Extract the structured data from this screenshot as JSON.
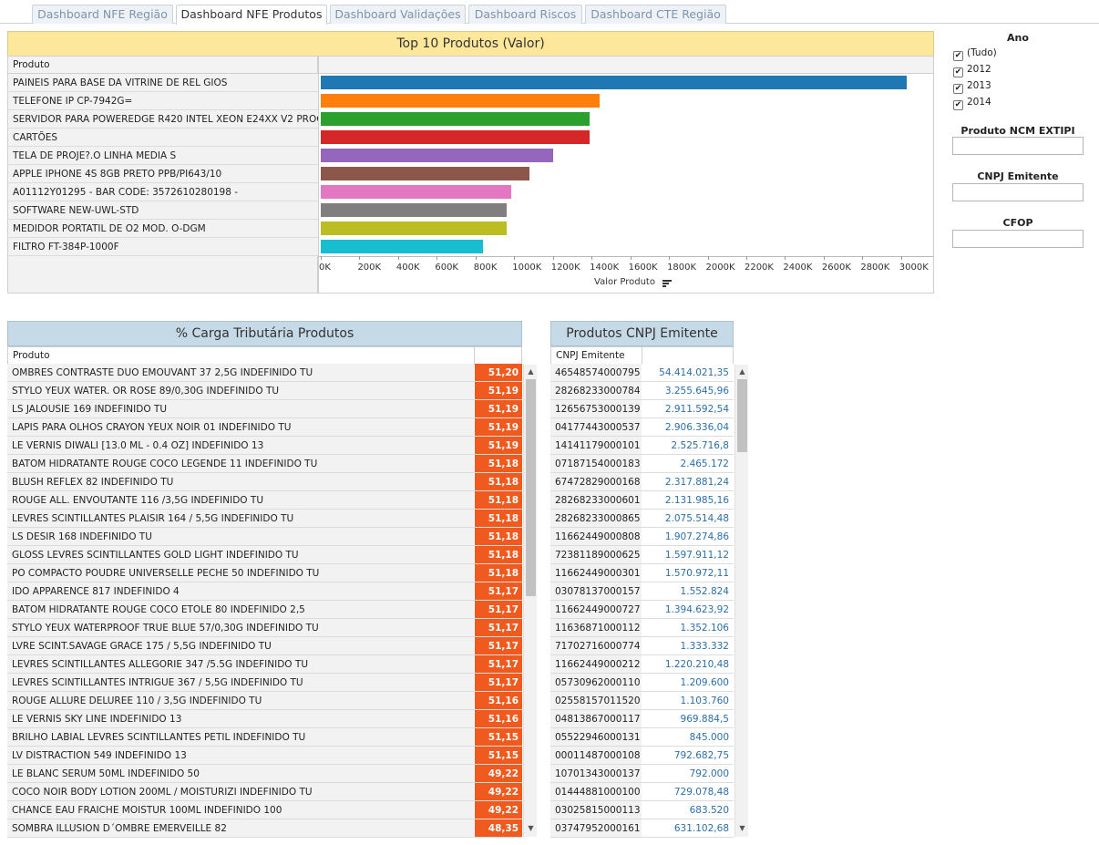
{
  "tabs": [
    {
      "label": "Dashboard NFE Região",
      "active": false
    },
    {
      "label": "Dashboard NFE Produtos",
      "active": true
    },
    {
      "label": "Dashboard Validações",
      "active": false
    },
    {
      "label": "Dashboard Riscos",
      "active": false
    },
    {
      "label": "Dashboard CTE Região",
      "active": false
    }
  ],
  "top_chart": {
    "title": "Top 10 Produtos (Valor)",
    "row_header": "Produto",
    "axis_title": "Valor Produto",
    "ticks": [
      "0K",
      "200K",
      "400K",
      "600K",
      "800K",
      "1000K",
      "1200K",
      "1400K",
      "1600K",
      "1800K",
      "2000K",
      "2200K",
      "2400K",
      "2600K",
      "2800K",
      "3000K"
    ],
    "axis_max": 3180,
    "items": [
      {
        "label": "PAINEIS PARA BASE DA VITRINE DE REL GIOS",
        "value": 3030,
        "color": "#1f77b4"
      },
      {
        "label": "TELEFONE IP CP-7942G=",
        "value": 1440,
        "color": "#ff7f0e"
      },
      {
        "label": "SERVIDOR PARA POWEREDGE R420 INTEL XEON E24XX V2 PROCE..",
        "value": 1390,
        "color": "#2ca02c"
      },
      {
        "label": "CARTÕES",
        "value": 1390,
        "color": "#d62728"
      },
      {
        "label": "TELA DE PROJE?.O LINHA MEDIA S",
        "value": 1200,
        "color": "#9467bd"
      },
      {
        "label": "APPLE IPHONE 4S 8GB PRETO PPB/PI643/10",
        "value": 1080,
        "color": "#8c564b"
      },
      {
        "label": "A01112Y01295 - BAR CODE: 3572610280198 -",
        "value": 985,
        "color": "#e377c2"
      },
      {
        "label": "SOFTWARE NEW-UWL-STD",
        "value": 960,
        "color": "#7f7f7f"
      },
      {
        "label": "MEDIDOR PORTATIL DE O2 MOD. O-DGM",
        "value": 960,
        "color": "#bcbd22"
      },
      {
        "label": "FILTRO FT-384P-1000F",
        "value": 840,
        "color": "#17becf"
      }
    ]
  },
  "carga": {
    "title": "% Carga Tributária Produtos",
    "col_header": "Produto",
    "rows": [
      {
        "label": "OMBRES CONTRASTE DUO EMOUVANT 37 2,5G INDEFINIDO TU",
        "value": "51,20"
      },
      {
        "label": "STYLO YEUX WATER. OR ROSE 89/0,30G INDEFINIDO TU",
        "value": "51,19"
      },
      {
        "label": "LS JALOUSIE 169 INDEFINIDO TU",
        "value": "51,19"
      },
      {
        "label": "LAPIS PARA OLHOS CRAYON YEUX NOIR 01 INDEFINIDO TU",
        "value": "51,19"
      },
      {
        "label": "LE VERNIS DIWALI [13.0 ML - 0.4 OZ] INDEFINIDO 13",
        "value": "51,19"
      },
      {
        "label": "BATOM HIDRATANTE ROUGE COCO LEGENDE 11 INDEFINIDO TU",
        "value": "51,18"
      },
      {
        "label": "BLUSH REFLEX 82 INDEFINIDO TU",
        "value": "51,18"
      },
      {
        "label": "ROUGE ALL. ENVOUTANTE 116 /3,5G INDEFINIDO TU",
        "value": "51,18"
      },
      {
        "label": "LEVRES SCINTILLANTES PLAISIR 164 / 5,5G INDEFINIDO TU",
        "value": "51,18"
      },
      {
        "label": "LS DESIR 168 INDEFINIDO TU",
        "value": "51,18"
      },
      {
        "label": "GLOSS LEVRES SCINTILLANTES GOLD LIGHT INDEFINIDO TU",
        "value": "51,18"
      },
      {
        "label": "PO COMPACTO POUDRE UNIVERSELLE PECHE 50 INDEFINIDO TU",
        "value": "51,18"
      },
      {
        "label": "IDO APPARENCE 817 INDEFINIDO 4",
        "value": "51,17"
      },
      {
        "label": "BATOM HIDRATANTE ROUGE COCO ETOLE 80 INDEFINIDO 2,5",
        "value": "51,17"
      },
      {
        "label": "STYLO YEUX WATERPROOF TRUE BLUE 57/0,30G INDEFINIDO TU",
        "value": "51,17"
      },
      {
        "label": "LVRE SCINT.SAVAGE GRACE 175 / 5,5G INDEFINIDO TU",
        "value": "51,17"
      },
      {
        "label": "LEVRES SCINTILLANTES ALLEGORIE 347 /5.5G INDEFINIDO TU",
        "value": "51,17"
      },
      {
        "label": "LEVRES SCINTILLANTES INTRIGUE 367 / 5,5G INDEFINIDO TU",
        "value": "51,17"
      },
      {
        "label": "ROUGE ALLURE DELUREE 110 / 3,5G INDEFINIDO TU",
        "value": "51,16"
      },
      {
        "label": "LE VERNIS SKY LINE INDEFINIDO 13",
        "value": "51,16"
      },
      {
        "label": "BRILHO LABIAL LEVRES SCINTILLANTES PETIL INDEFINIDO TU",
        "value": "51,15"
      },
      {
        "label": "LV DISTRACTION 549 INDEFINIDO 13",
        "value": "51,15"
      },
      {
        "label": "LE BLANC SERUM 50ML INDEFINIDO 50",
        "value": "49,22"
      },
      {
        "label": "COCO NOIR BODY LOTION 200ML / MOISTURIZI INDEFINIDO TU",
        "value": "49,22"
      },
      {
        "label": "CHANCE EAU FRAICHE MOISTUR 100ML INDEFINIDO 100",
        "value": "49,22"
      },
      {
        "label": "SOMBRA ILLUSION D´OMBRE EMERVEILLE 82",
        "value": "48,35"
      }
    ]
  },
  "cnpj": {
    "title": "Produtos CNPJ Emitente",
    "col_header": "CNPJ Emitente",
    "rows": [
      {
        "label": "46548574000795",
        "value": "54.414.021,35"
      },
      {
        "label": "28268233000784",
        "value": "3.255.645,96"
      },
      {
        "label": "12656753000139",
        "value": "2.911.592,54"
      },
      {
        "label": "04177443000537",
        "value": "2.906.336,04"
      },
      {
        "label": "14141179000101",
        "value": "2.525.716,8"
      },
      {
        "label": "07187154000183",
        "value": "2.465.172"
      },
      {
        "label": "67472829000168",
        "value": "2.317.881,24"
      },
      {
        "label": "28268233000601",
        "value": "2.131.985,16"
      },
      {
        "label": "28268233000865",
        "value": "2.075.514,48"
      },
      {
        "label": "11662449000808",
        "value": "1.907.274,86"
      },
      {
        "label": "72381189000625",
        "value": "1.597.911,12"
      },
      {
        "label": "11662449000301",
        "value": "1.570.972,11"
      },
      {
        "label": "03078137000157",
        "value": "1.552.824"
      },
      {
        "label": "11662449000727",
        "value": "1.394.623,92"
      },
      {
        "label": "11636871000112",
        "value": "1.352.106"
      },
      {
        "label": "71702716000774",
        "value": "1.333.332"
      },
      {
        "label": "11662449000212",
        "value": "1.220.210,48"
      },
      {
        "label": "05730962000110",
        "value": "1.209.600"
      },
      {
        "label": "02558157011520",
        "value": "1.103.760"
      },
      {
        "label": "04813867000117",
        "value": "969.884,5"
      },
      {
        "label": "05522946000131",
        "value": "845.000"
      },
      {
        "label": "00011487000108",
        "value": "792.682,75"
      },
      {
        "label": "10701343000137",
        "value": "792.000"
      },
      {
        "label": "01444881000100",
        "value": "729.078,48"
      },
      {
        "label": "03025815000113",
        "value": "683.520"
      },
      {
        "label": "03747952000161",
        "value": "631.102,68"
      }
    ]
  },
  "filters": {
    "ano_title": "Ano",
    "ano_options": [
      {
        "label": "(Tudo)",
        "checked": true
      },
      {
        "label": "2012",
        "checked": true
      },
      {
        "label": "2013",
        "checked": true
      },
      {
        "label": "2014",
        "checked": true
      }
    ],
    "ncm_title": "Produto NCM EXTIPI",
    "ncm_value": "",
    "cnpj_title": "CNPJ Emitente",
    "cnpj_value": "",
    "cfop_title": "CFOP",
    "cfop_value": ""
  },
  "scroll": {
    "up_icon": "▲",
    "down_icon": "▼",
    "check_icon": "✔"
  }
}
